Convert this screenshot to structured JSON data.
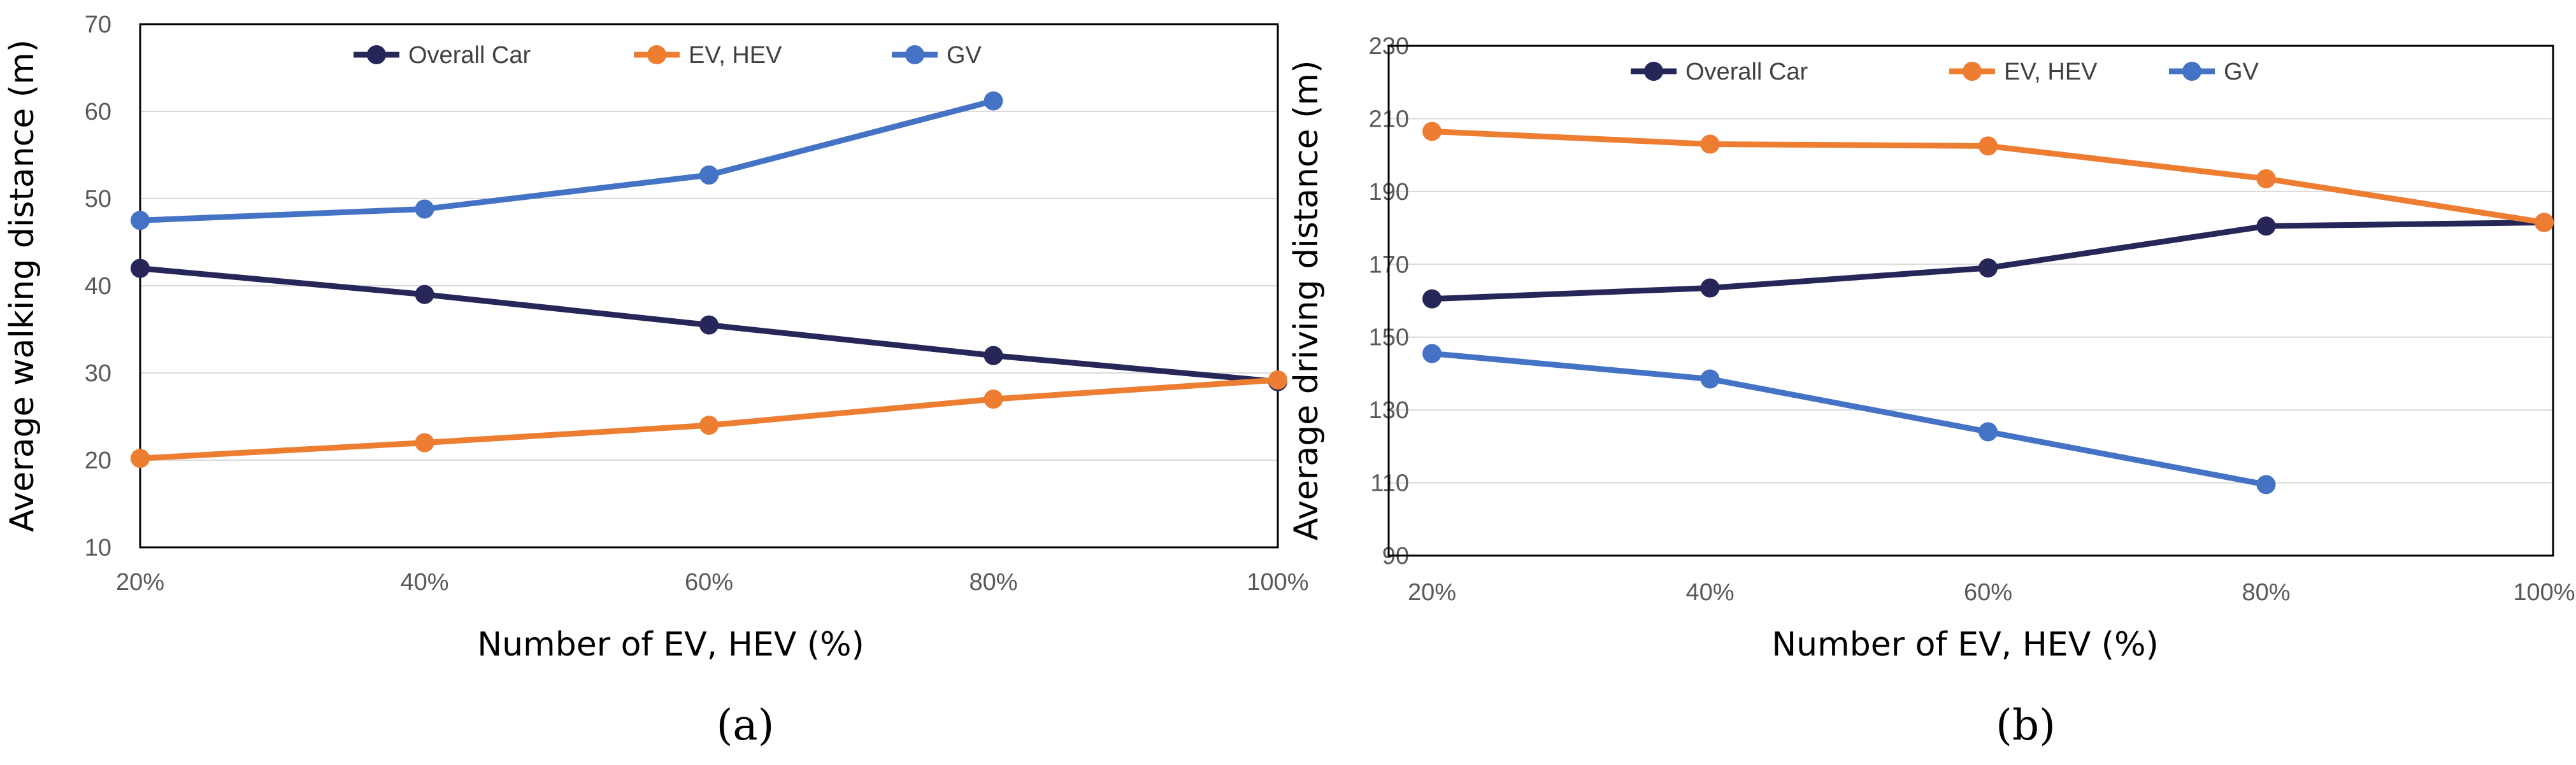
{
  "chart_data": [
    {
      "type": "line",
      "id": "a",
      "panel_label": "(a)",
      "title": "",
      "xlabel": "Number of EV, HEV (%)",
      "ylabel": "Average walking distance (m)",
      "categories": [
        "20%",
        "40%",
        "60%",
        "80%",
        "100%"
      ],
      "ylim": [
        10,
        70
      ],
      "yticks": [
        10,
        20,
        30,
        40,
        50,
        60,
        70
      ],
      "ytick_labels": [
        "10",
        "20",
        "30",
        "40",
        "50",
        "60",
        "70"
      ],
      "grid": true,
      "legend_position": "top-center",
      "series": [
        {
          "name": "Overall Car",
          "color": "#262659",
          "values": [
            42,
            39,
            35.5,
            32,
            29
          ]
        },
        {
          "name": "EV, HEV",
          "color": "#ED7D31",
          "values": [
            20.2,
            22,
            24,
            27,
            29.2
          ]
        },
        {
          "name": "GV",
          "color": "#4472C4",
          "values": [
            47.5,
            48.8,
            52.7,
            61.2,
            null
          ]
        }
      ]
    },
    {
      "type": "line",
      "id": "b",
      "panel_label": "(b)",
      "title": "",
      "xlabel": "Number of EV, HEV (%)",
      "ylabel": "Average driving distance (m)",
      "categories": [
        "20%",
        "40%",
        "60%",
        "80%",
        "100%"
      ],
      "ylim": [
        90,
        230
      ],
      "yticks": [
        90,
        110,
        130,
        150,
        170,
        190,
        210,
        230
      ],
      "ytick_labels": [
        "90",
        "110",
        "130",
        "150",
        "170",
        "190",
        "210",
        "230"
      ],
      "grid": true,
      "legend_position": "top-center",
      "series": [
        {
          "name": "Overall Car",
          "color": "#262659",
          "values": [
            160.5,
            163.5,
            169,
            180.5,
            181.5
          ]
        },
        {
          "name": "EV, HEV",
          "color": "#ED7D31",
          "values": [
            206.5,
            203,
            202.5,
            193.5,
            181.5
          ]
        },
        {
          "name": "GV",
          "color": "#4472C4",
          "values": [
            145.5,
            138.5,
            124,
            109.5,
            null
          ]
        }
      ]
    }
  ]
}
